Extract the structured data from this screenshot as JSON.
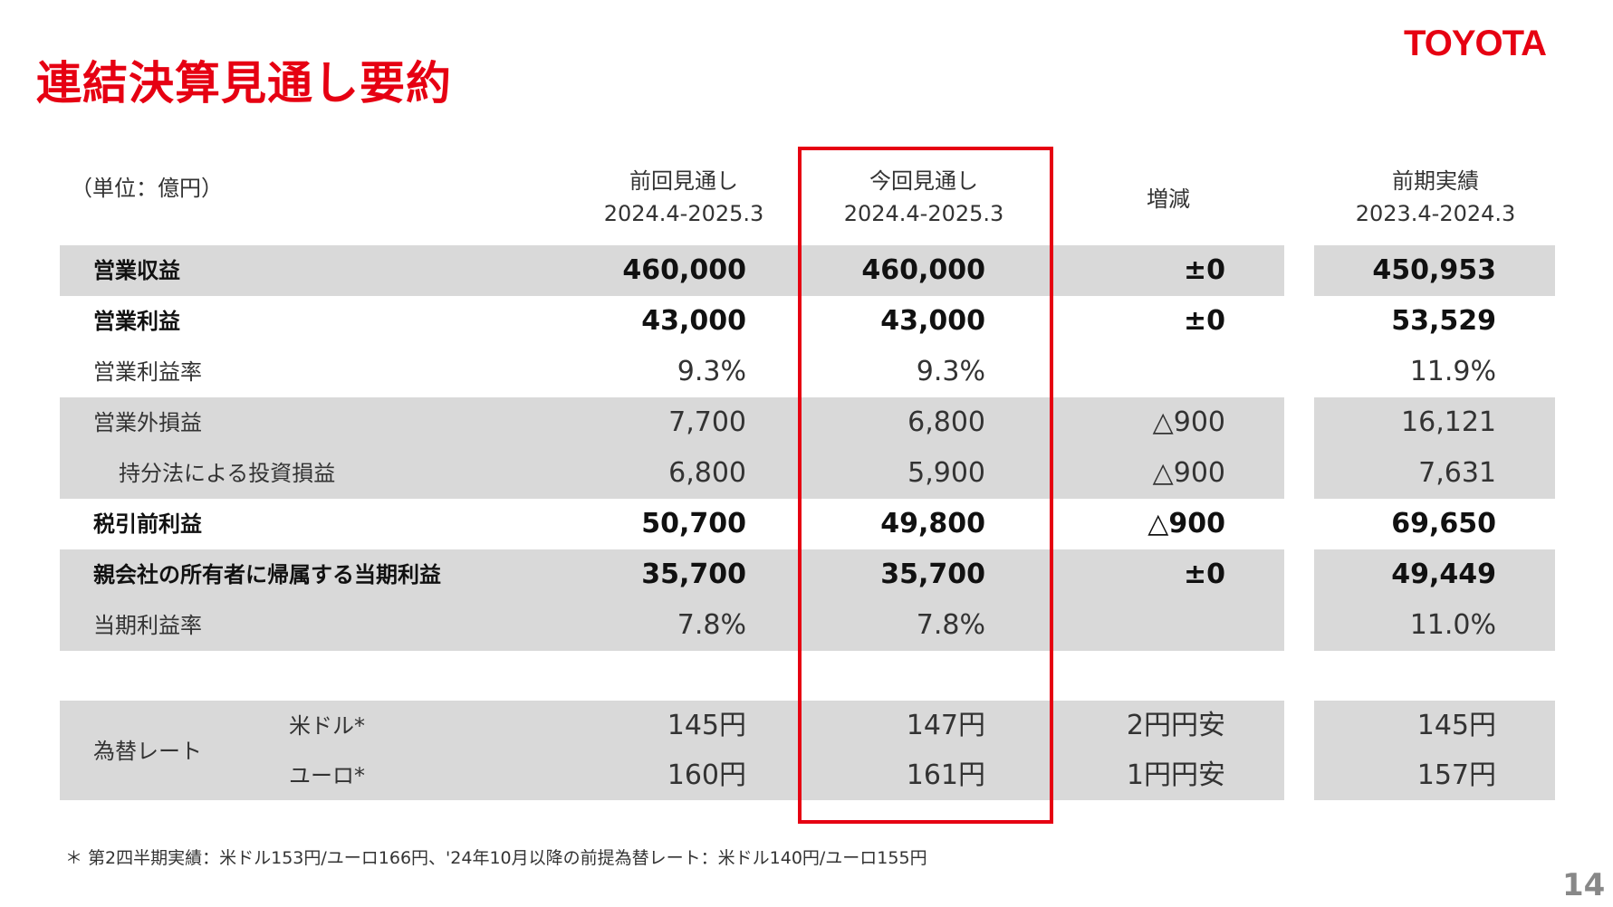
{
  "title": "連結決算見通し要約",
  "logo": "TOYOTA",
  "unit": "（単位：億円）",
  "columns": [
    {
      "line1": "前回見通し",
      "line2": "2024.4-2025.3"
    },
    {
      "line1": "今回見通し",
      "line2": "2024.4-2025.3"
    },
    {
      "line1": "増減",
      "line2": ""
    },
    {
      "line1": "前期実績",
      "line2": "2023.4-2024.3"
    }
  ],
  "rows": [
    {
      "label": "営業収益",
      "values": [
        "460,000",
        "460,000",
        "±0",
        "450,953"
      ]
    },
    {
      "label": "営業利益",
      "values": [
        "43,000",
        "43,000",
        "±0",
        "53,529"
      ]
    },
    {
      "label": "営業利益率",
      "values": [
        "9.3%",
        "9.3%",
        "",
        "11.9%"
      ]
    },
    {
      "label": "営業外損益",
      "values": [
        "7,700",
        "6,800",
        "△900",
        "16,121"
      ]
    },
    {
      "label": "持分法による投資損益",
      "values": [
        "6,800",
        "5,900",
        "△900",
        "7,631"
      ]
    },
    {
      "label": "税引前利益",
      "values": [
        "50,700",
        "49,800",
        "△900",
        "69,650"
      ]
    },
    {
      "label": "親会社の所有者に帰属する当期利益",
      "values": [
        "35,700",
        "35,700",
        "±0",
        "49,449"
      ]
    },
    {
      "label": "当期利益率",
      "values": [
        "7.8%",
        "7.8%",
        "",
        "11.0%"
      ]
    }
  ],
  "fx": {
    "label": "為替レート",
    "rows": [
      {
        "label": "米ドル*",
        "values": [
          "145円",
          "147円",
          "2円円安",
          "145円"
        ]
      },
      {
        "label": "ユーロ*",
        "values": [
          "160円",
          "161円",
          "1円円安",
          "157円"
        ]
      }
    ]
  },
  "footnote": "＊ 第2四半期実績：米ドル153円/ユーロ166円、'24年10月以降の前提為替レート：米ドル140円/ユーロ155円",
  "page_number": "14"
}
